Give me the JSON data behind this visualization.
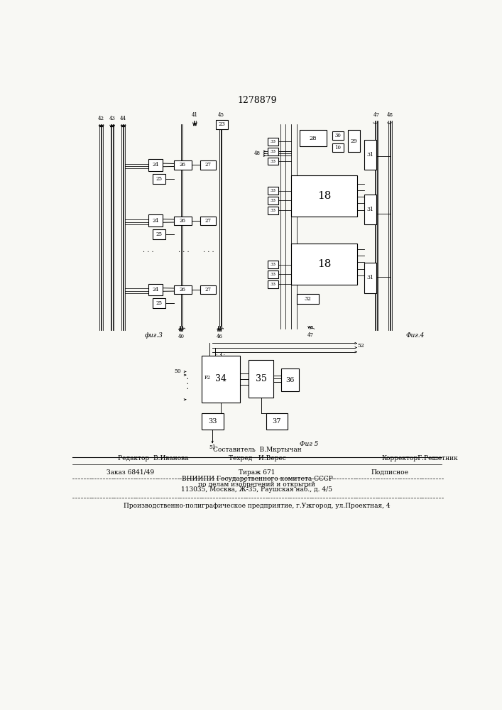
{
  "title": "1278879",
  "bg_color": "#f8f8f4",
  "fig3_label": "фиг.3",
  "fig4_label": "Фиг.4",
  "fig5_label": "Фиг 5",
  "footer_lines": [
    "Составитель  В.Мкртычан",
    "Редактор  В.Иванова",
    "Техред   И.Верес",
    "КорректорГ.Решетник",
    "Заказ 6841/49",
    "Тираж 671",
    "Подписное",
    "ВНИИПИ Государственного комитета СССР",
    "по делам изобретений и открытий",
    "113035, Москва, Ж-35, Раушская наб., д. 4/5",
    "Производственно-полиграфическое предприятие, г.Ужгород, ул.Проектная, 4"
  ]
}
